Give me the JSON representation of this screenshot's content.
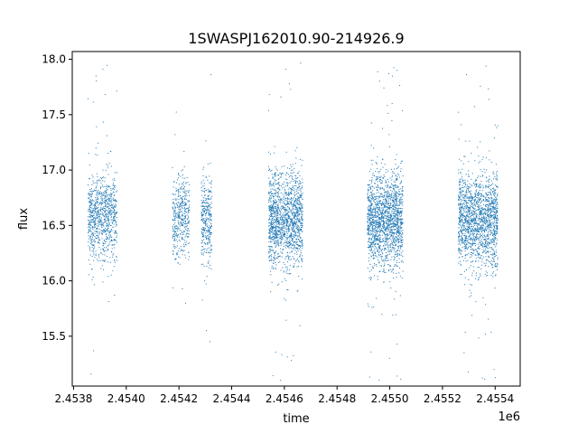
{
  "chart_data": {
    "type": "scatter",
    "title": "1SWASPJ162010.90-214926.9",
    "xlabel": "time",
    "ylabel": "flux",
    "x_offset_label": "1e6",
    "xlim": [
      2453795,
      2455495
    ],
    "ylim": [
      15.05,
      18.07
    ],
    "x_ticks": [
      2453800,
      2454000,
      2454200,
      2454400,
      2454600,
      2454800,
      2455000,
      2455200,
      2455400
    ],
    "x_tick_labels": [
      "2.4538",
      "2.4540",
      "2.4542",
      "2.4544",
      "2.4546",
      "2.4548",
      "2.4550",
      "2.4552",
      "2.4554"
    ],
    "y_ticks": [
      15.5,
      16.0,
      16.5,
      17.0,
      17.5,
      18.0
    ],
    "y_tick_labels": [
      "15.5",
      "16.0",
      "16.5",
      "17.0",
      "17.5",
      "18.0"
    ],
    "grid": false,
    "legend": "none",
    "marker_color": "#1f77b4",
    "series": [
      {
        "clusters": [
          {
            "x_range": [
              2453855,
              2453965
            ],
            "center": 16.58,
            "spread": 0.19,
            "count": 900
          },
          {
            "x_range": [
              2454175,
              2454240
            ],
            "center": 16.58,
            "spread": 0.19,
            "count": 420
          },
          {
            "x_range": [
              2454285,
              2454325
            ],
            "center": 16.55,
            "spread": 0.19,
            "count": 330
          },
          {
            "x_range": [
              2454540,
              2454670
            ],
            "center": 16.55,
            "spread": 0.21,
            "count": 1500
          },
          {
            "x_range": [
              2454915,
              2455050
            ],
            "center": 16.55,
            "spread": 0.21,
            "count": 1700
          },
          {
            "x_range": [
              2455260,
              2455410
            ],
            "center": 16.55,
            "spread": 0.21,
            "count": 1700
          }
        ]
      }
    ]
  }
}
